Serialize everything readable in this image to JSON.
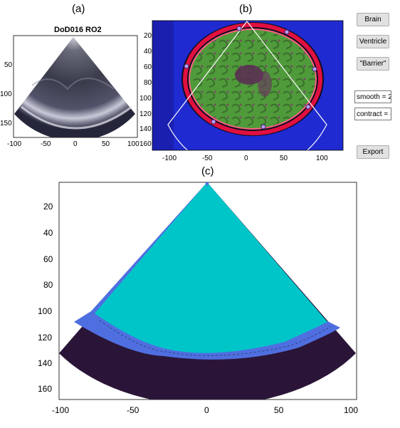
{
  "labels": {
    "a": "(a)",
    "b": "(b)",
    "c": "(c)"
  },
  "panel_a": {
    "title": "DoD016 RO2",
    "y_ticks": [
      "50",
      "100",
      "150"
    ],
    "x_ticks": [
      "-100",
      "-50",
      "0",
      "50",
      "100"
    ]
  },
  "panel_b": {
    "y_ticks": [
      "20",
      "40",
      "60",
      "80",
      "100",
      "120",
      "140",
      "160"
    ],
    "x_ticks": [
      "-100",
      "-50",
      "0",
      "50",
      "100"
    ]
  },
  "controls": {
    "brain_label": "Brain",
    "ventricle_label": "Ventricle",
    "barrier_label": "\"Barrier\"",
    "smooth_value": "smooth = 2",
    "contract_value": "contract = -",
    "export_label": "Export"
  },
  "panel_c": {
    "y_ticks": [
      "20",
      "40",
      "60",
      "80",
      "100",
      "120",
      "140",
      "160"
    ],
    "x_ticks": [
      "-100",
      "-50",
      "0",
      "50",
      "100"
    ],
    "colors": {
      "region_inner": "#00c5c8",
      "region_boundary": "#4f6fe0",
      "region_outer": "#2a1538"
    }
  }
}
